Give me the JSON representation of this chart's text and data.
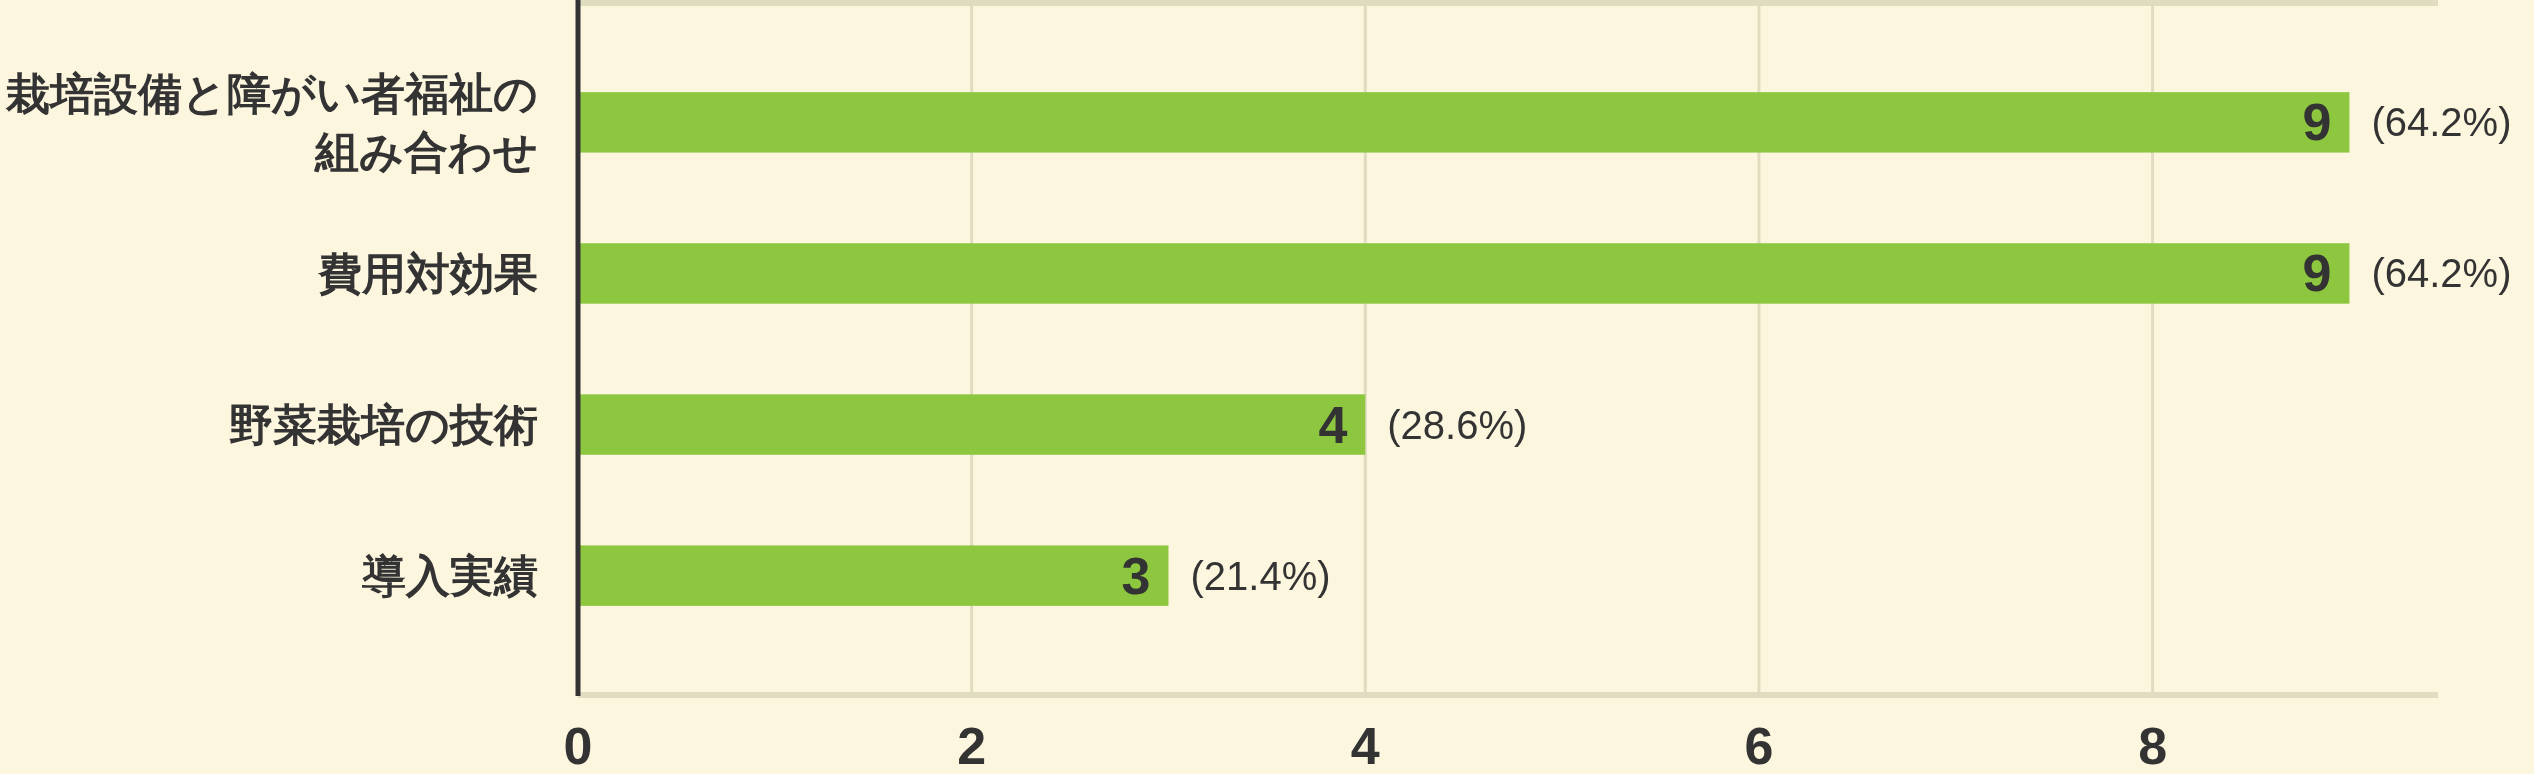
{
  "chart_data": {
    "type": "bar",
    "orientation": "horizontal",
    "categories": [
      "栽培設備と障がい者福祉の組み合わせ",
      "費用対効果",
      "野菜栽培の技術",
      "導入実績"
    ],
    "values": [
      9,
      9,
      4,
      3
    ],
    "color": "#8dc63f",
    "data_labels": true,
    "annotations": [
      {
        "text": "(64.2%)",
        "x": 9,
        "y": "栽培設備と障がい者福祉の組み合わせ"
      },
      {
        "text": "(64.2%)",
        "x": 9,
        "y": "費用対効果"
      },
      {
        "text": "(28.6%)",
        "x": 4,
        "y": "野菜栽培の技術"
      },
      {
        "text": "(21.4%)",
        "x": 3,
        "y": "導入実績"
      }
    ],
    "xlim": [
      0,
      9.45
    ],
    "xticks": [
      0,
      2,
      4,
      6,
      8
    ],
    "grid": "x"
  }
}
